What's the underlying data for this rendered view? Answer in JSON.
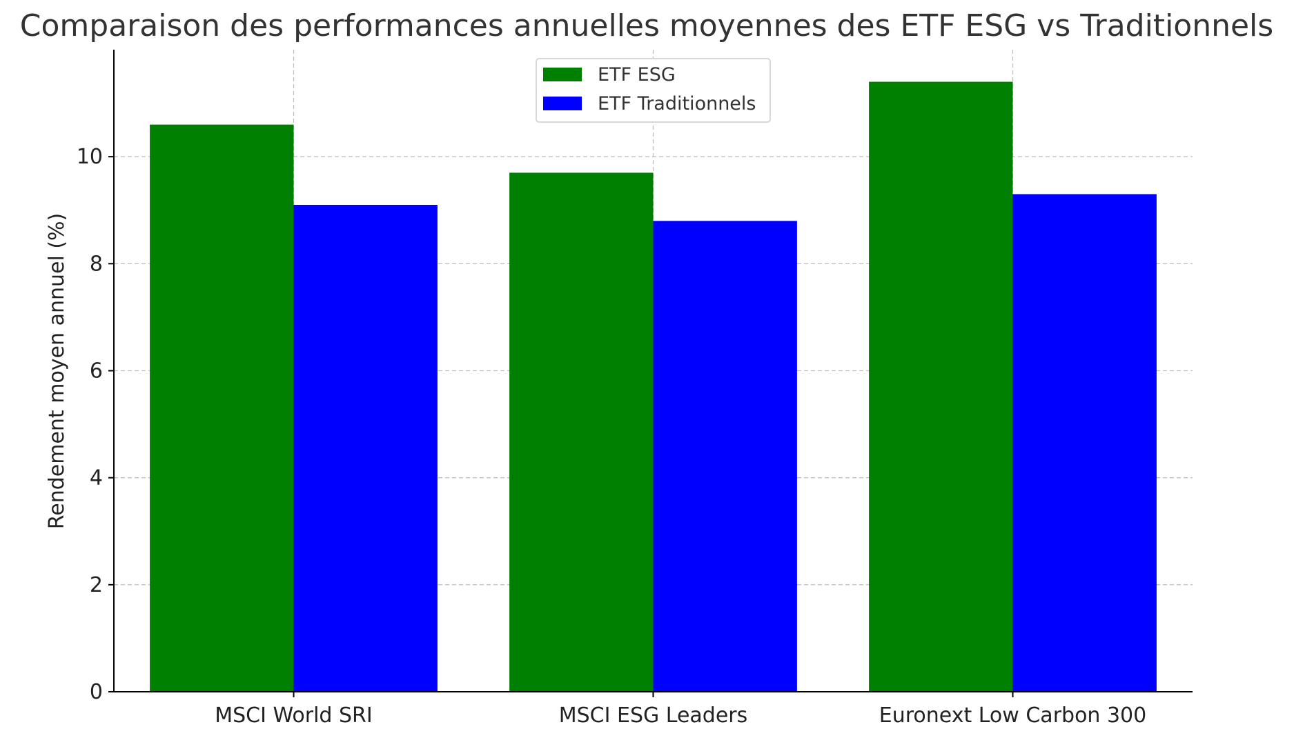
{
  "chart_data": {
    "type": "bar",
    "title": "Comparaison des performances annuelles moyennes des ETF ESG vs Traditionnels",
    "xlabel": "",
    "ylabel": "Rendement moyen annuel (%)",
    "categories": [
      "MSCI World SRI",
      "MSCI ESG Leaders",
      "Euronext Low Carbon 300"
    ],
    "series": [
      {
        "name": "ETF ESG",
        "color": "#008000",
        "values": [
          10.6,
          9.7,
          11.4
        ]
      },
      {
        "name": "ETF Traditionnels",
        "color": "#0000ff",
        "values": [
          9.1,
          8.8,
          9.3
        ]
      }
    ],
    "ylim": [
      0,
      12
    ],
    "yticks": [
      0,
      2,
      4,
      6,
      8,
      10
    ],
    "grid": true,
    "legend_position": "top-center"
  }
}
